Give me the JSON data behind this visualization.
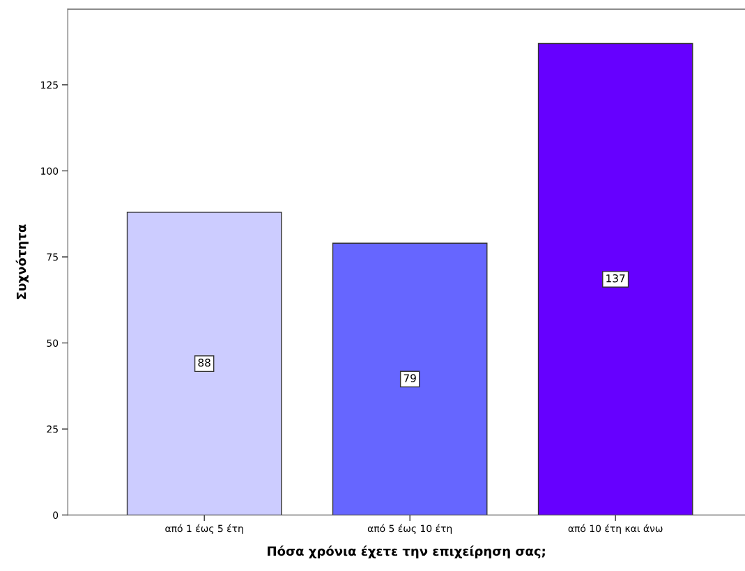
{
  "chart_data": {
    "type": "bar",
    "xlabel": "Πόσα χρόνια έχετε την επιχείρηση σας;",
    "ylabel": "Συχνότητα",
    "categories": [
      "από 1 έως 5 έτη",
      "από 5 έως 10 έτη",
      "από 10 έτη και άνω"
    ],
    "values": [
      88,
      79,
      137
    ],
    "colors": [
      "#ccccff",
      "#6666ff",
      "#6600ff"
    ],
    "ylim": [
      0,
      147
    ],
    "yticks": [
      0,
      25,
      50,
      75,
      100,
      125
    ],
    "data_labels": true,
    "grid": false,
    "legend": false
  }
}
